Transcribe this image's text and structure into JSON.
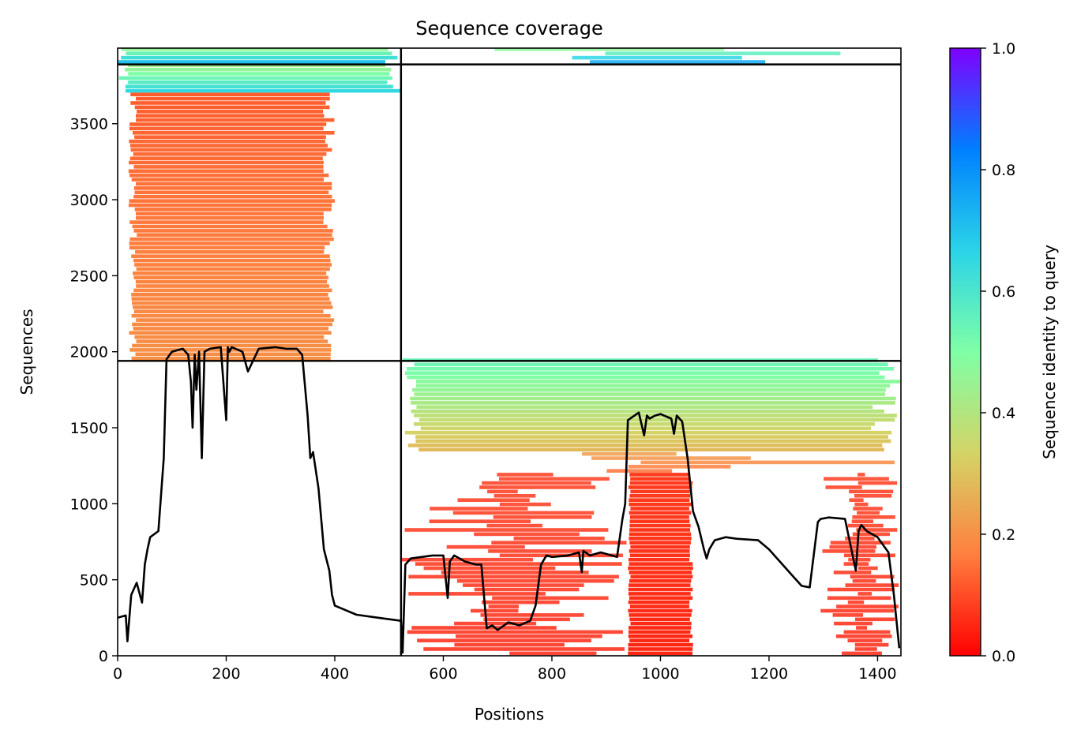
{
  "chart_data": {
    "type": "heatmap",
    "title": "Sequence coverage",
    "xlabel": "Positions",
    "ylabel": "Sequences",
    "xlim": [
      0,
      1443
    ],
    "ylim": [
      0,
      3997
    ],
    "xticks": [
      0,
      200,
      400,
      600,
      800,
      1000,
      1200,
      1400
    ],
    "yticks": [
      0,
      500,
      1000,
      1500,
      2000,
      2500,
      3000,
      3500
    ],
    "colorbar": {
      "label": "Sequence identity to query",
      "range": [
        0.0,
        1.0
      ],
      "ticks": [
        "0.0",
        "0.2",
        "0.4",
        "0.6",
        "0.8",
        "1.0"
      ],
      "colormap": "rainbow_r",
      "stops": [
        "#ff0000",
        "#ff7f3f",
        "#d4d466",
        "#7fffa6",
        "#2ad4e8",
        "#0080ff",
        "#7f00ff"
      ]
    },
    "domain_boundaries": {
      "x": 522,
      "y": [
        1940,
        3890
      ]
    },
    "coverage_blocks": [
      {
        "x": [
          0,
          522
        ],
        "y": [
          3890,
          3997
        ],
        "identity": [
          0.7,
          0.4
        ]
      },
      {
        "x": [
          522,
          1443
        ],
        "y": [
          3890,
          3997
        ],
        "identity": [
          0.75,
          0.4
        ],
        "sparse": true
      },
      {
        "x": [
          0,
          522
        ],
        "y": [
          3700,
          3890
        ],
        "identity": [
          0.65,
          0.4
        ]
      },
      {
        "x": [
          20,
          400
        ],
        "y": [
          1940,
          3700
        ],
        "identity": [
          0.2,
          0.12
        ]
      },
      {
        "x": [
          522,
          1443
        ],
        "y": [
          1940,
          1340
        ],
        "identity": [
          0.55,
          0.28
        ]
      },
      {
        "x": [
          522,
          1443
        ],
        "y": [
          1340,
          1200
        ],
        "identity": [
          0.25,
          0.15
        ],
        "sparse": true
      },
      {
        "x": [
          940,
          1060
        ],
        "y": [
          1200,
          0
        ],
        "identity": [
          0.08,
          0.05
        ]
      },
      {
        "x": [
          1295,
          1440
        ],
        "y": [
          1200,
          0
        ],
        "identity": [
          0.08,
          0.05
        ],
        "sparse": true
      },
      {
        "x": [
          522,
          940
        ],
        "y": [
          1200,
          0
        ],
        "identity": [
          0.08,
          0.05
        ],
        "sparse": true
      }
    ],
    "coverage_line": {
      "x": [
        0,
        15,
        18,
        25,
        35,
        45,
        50,
        55,
        60,
        75,
        85,
        90,
        100,
        120,
        130,
        135,
        138,
        142,
        145,
        150,
        155,
        160,
        170,
        190,
        200,
        203,
        206,
        210,
        230,
        240,
        260,
        290,
        310,
        330,
        340,
        350,
        355,
        360,
        370,
        375,
        380,
        390,
        395,
        400,
        420,
        440,
        480,
        522,
        525,
        530,
        540,
        560,
        580,
        600,
        608,
        612,
        620,
        640,
        660,
        670,
        680,
        690,
        700,
        720,
        740,
        760,
        770,
        780,
        790,
        800,
        830,
        850,
        855,
        858,
        870,
        890,
        920,
        930,
        935,
        940,
        960,
        970,
        975,
        980,
        990,
        1000,
        1020,
        1025,
        1030,
        1040,
        1050,
        1060,
        1070,
        1080,
        1085,
        1090,
        1100,
        1120,
        1140,
        1180,
        1200,
        1220,
        1240,
        1260,
        1275,
        1290,
        1295,
        1310,
        1340,
        1360,
        1365,
        1370,
        1380,
        1400,
        1420,
        1430,
        1440
      ],
      "y": [
        250,
        265,
        95,
        400,
        480,
        350,
        600,
        700,
        780,
        820,
        1300,
        1950,
        2000,
        2020,
        1980,
        1800,
        1500,
        1980,
        1750,
        2000,
        1300,
        2000,
        2020,
        2030,
        1550,
        2030,
        2000,
        2030,
        2000,
        1870,
        2020,
        2030,
        2020,
        2020,
        1980,
        1580,
        1300,
        1340,
        1100,
        900,
        700,
        560,
        400,
        330,
        300,
        270,
        250,
        230,
        20,
        600,
        640,
        650,
        660,
        660,
        380,
        620,
        660,
        620,
        600,
        600,
        180,
        200,
        170,
        220,
        200,
        230,
        330,
        600,
        660,
        650,
        660,
        680,
        550,
        690,
        660,
        680,
        650,
        900,
        1000,
        1550,
        1600,
        1450,
        1580,
        1560,
        1580,
        1590,
        1560,
        1460,
        1580,
        1540,
        1300,
        950,
        850,
        700,
        640,
        700,
        760,
        780,
        770,
        760,
        700,
        620,
        540,
        460,
        450,
        880,
        900,
        910,
        900,
        560,
        820,
        860,
        820,
        780,
        680,
        400,
        50
      ]
    }
  }
}
